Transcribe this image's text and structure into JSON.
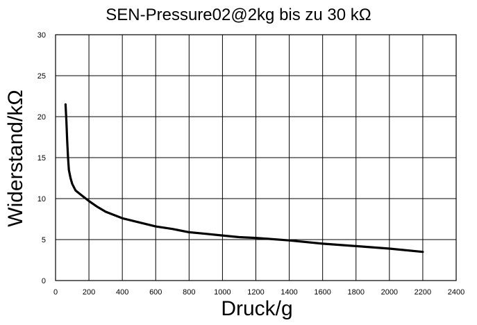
{
  "chart_data": {
    "type": "line",
    "title": "SEN-Pressure02@2kg bis zu 30 kΩ",
    "xlabel": "Druck/g",
    "ylabel": "Widerstand/kΩ",
    "xlim": [
      0,
      2400
    ],
    "ylim": [
      0,
      30
    ],
    "x_ticks": [
      0,
      200,
      400,
      600,
      800,
      1000,
      1200,
      1400,
      1600,
      1800,
      2000,
      2200,
      2400
    ],
    "y_ticks": [
      0,
      5,
      10,
      15,
      20,
      25,
      30
    ],
    "grid": true,
    "legend": "none",
    "series": [
      {
        "color": "#000000",
        "x": [
          60,
          65,
          70,
          75,
          80,
          90,
          100,
          120,
          150,
          200,
          250,
          300,
          400,
          500,
          600,
          700,
          800,
          900,
          1000,
          1100,
          1200,
          1400,
          1600,
          1800,
          2000,
          2200
        ],
        "y": [
          21.5,
          19.5,
          17.0,
          15.0,
          13.5,
          12.5,
          11.8,
          11.0,
          10.5,
          9.7,
          9.0,
          8.4,
          7.6,
          7.1,
          6.6,
          6.3,
          5.9,
          5.7,
          5.5,
          5.3,
          5.2,
          4.9,
          4.5,
          4.2,
          3.9,
          3.5
        ]
      }
    ]
  }
}
